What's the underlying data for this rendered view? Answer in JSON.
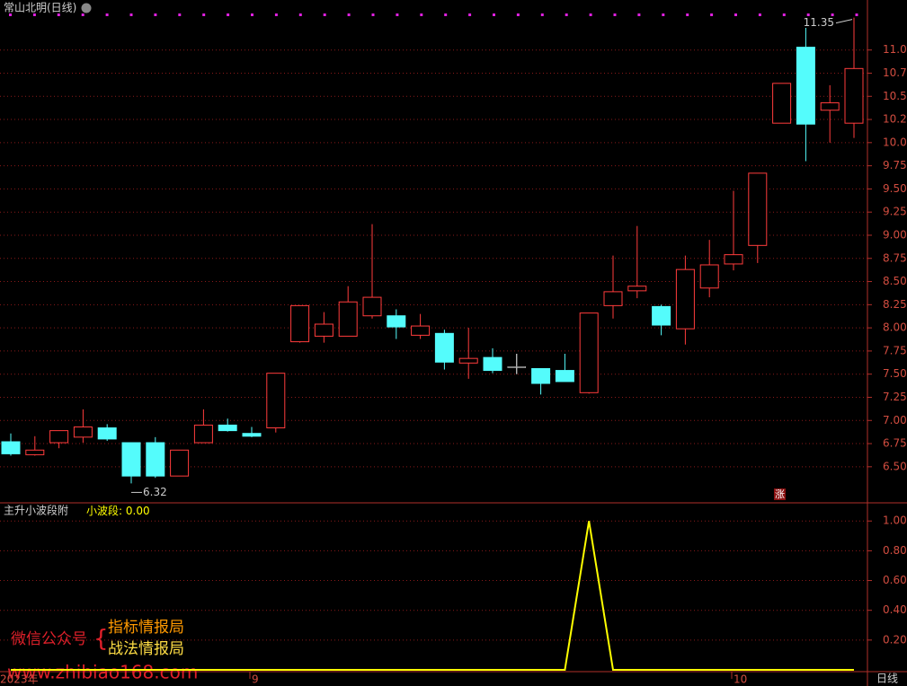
{
  "chart_data": [
    {
      "type": "candlestick",
      "title": "常山北明(日线)",
      "categories": [
        "2023年",
        null,
        null,
        null,
        null,
        null,
        null,
        null,
        null,
        null,
        "9",
        null,
        null,
        null,
        null,
        null,
        null,
        null,
        null,
        null,
        null,
        null,
        null,
        null,
        null,
        null,
        null,
        null,
        null,
        null,
        "10",
        null,
        null,
        null,
        null,
        null
      ],
      "open": [
        6.77,
        6.63,
        6.76,
        6.82,
        6.92,
        6.76,
        6.76,
        6.4,
        6.76,
        6.95,
        6.86,
        6.92,
        7.85,
        7.91,
        7.91,
        8.13,
        8.13,
        7.92,
        7.94,
        7.62,
        7.68,
        7.58,
        7.56,
        7.54,
        7.3,
        8.24,
        8.4,
        8.23,
        7.99,
        8.43,
        8.69,
        8.89,
        10.21,
        11.03,
        10.35,
        10.21
      ],
      "high": [
        6.86,
        6.83,
        6.89,
        7.12,
        6.96,
        6.76,
        6.82,
        6.68,
        7.12,
        7.02,
        6.93,
        7.51,
        8.24,
        8.17,
        8.45,
        9.12,
        8.2,
        8.15,
        7.98,
        8.0,
        7.78,
        7.72,
        7.56,
        7.72,
        8.16,
        8.78,
        9.1,
        8.25,
        8.78,
        8.95,
        9.48,
        9.67,
        10.64,
        11.24,
        10.62,
        11.35
      ],
      "low": [
        6.62,
        6.62,
        6.7,
        6.76,
        6.78,
        6.32,
        6.38,
        6.4,
        6.76,
        6.88,
        6.82,
        6.87,
        7.84,
        7.84,
        7.91,
        8.1,
        7.88,
        7.88,
        7.55,
        7.45,
        7.51,
        7.5,
        7.28,
        7.42,
        7.29,
        8.1,
        8.32,
        7.92,
        7.82,
        8.33,
        8.62,
        8.7,
        10.21,
        9.8,
        10.0,
        10.05
      ],
      "close": [
        6.64,
        6.68,
        6.89,
        6.93,
        6.8,
        6.4,
        6.4,
        6.68,
        6.95,
        6.89,
        6.83,
        7.51,
        8.24,
        8.04,
        8.28,
        8.33,
        8.01,
        8.02,
        7.63,
        7.67,
        7.54,
        7.58,
        7.4,
        7.42,
        8.16,
        8.39,
        8.45,
        8.03,
        8.63,
        8.68,
        8.79,
        9.67,
        10.64,
        10.2,
        10.43,
        10.8
      ],
      "up_color": "#ff3c3c",
      "down_color": "#54fcfc",
      "annotations": [
        11.35,
        6.32
      ],
      "ylim": [
        6.13,
        11.54
      ],
      "yticks": [
        {
          "value": 6.5,
          "label": "6.50"
        },
        {
          "value": 6.75,
          "label": "6.75"
        },
        {
          "value": 7,
          "label": "7.00"
        },
        {
          "value": 7.25,
          "label": "7.25"
        },
        {
          "value": 7.5,
          "label": "7.50"
        },
        {
          "value": 7.75,
          "label": "7.75"
        },
        {
          "value": 8,
          "label": "8.00"
        },
        {
          "value": 8.25,
          "label": "8.25"
        },
        {
          "value": 8.5,
          "label": "8.50"
        },
        {
          "value": 8.75,
          "label": "8.75"
        },
        {
          "value": 9,
          "label": "9.00"
        },
        {
          "value": 9.25,
          "label": "9.25"
        },
        {
          "value": 9.5,
          "label": "9.50"
        },
        {
          "value": 9.75,
          "label": "9.75"
        },
        {
          "value": 10,
          "label": "10.00"
        },
        {
          "value": 10.25,
          "label": "10.25"
        },
        {
          "value": 10.5,
          "label": "10.50"
        },
        {
          "value": 10.75,
          "label": "10.75"
        },
        {
          "value": 11,
          "label": "11.00"
        }
      ],
      "grid": true,
      "badge": "涨"
    },
    {
      "type": "line",
      "title": "主升小波段附",
      "series": [
        {
          "name": "小波段",
          "color": "#ffff00",
          "values": [
            0,
            0,
            0,
            0,
            0,
            0,
            0,
            0,
            0,
            0,
            0,
            0,
            0,
            0,
            0,
            0,
            0,
            0,
            0,
            0,
            0,
            0,
            0,
            0,
            1,
            0,
            0,
            0,
            0,
            0,
            0,
            0,
            0,
            0,
            0,
            0
          ],
          "last_label": "0.00"
        }
      ],
      "ylim": [
        0,
        1.11
      ],
      "yticks": [
        {
          "value": 0.2,
          "label": "0.20"
        },
        {
          "value": 0.4,
          "label": "0.40"
        },
        {
          "value": 0.6,
          "label": "0.60"
        },
        {
          "value": 0.8,
          "label": "0.80"
        },
        {
          "value": 1,
          "label": "1.00"
        }
      ],
      "grid": true
    }
  ],
  "watermark": {
    "account": "微信公众号",
    "name1": "指标情报局",
    "name2": "战法情报局",
    "site": "www.zhibiao168.com"
  },
  "period": "日线"
}
